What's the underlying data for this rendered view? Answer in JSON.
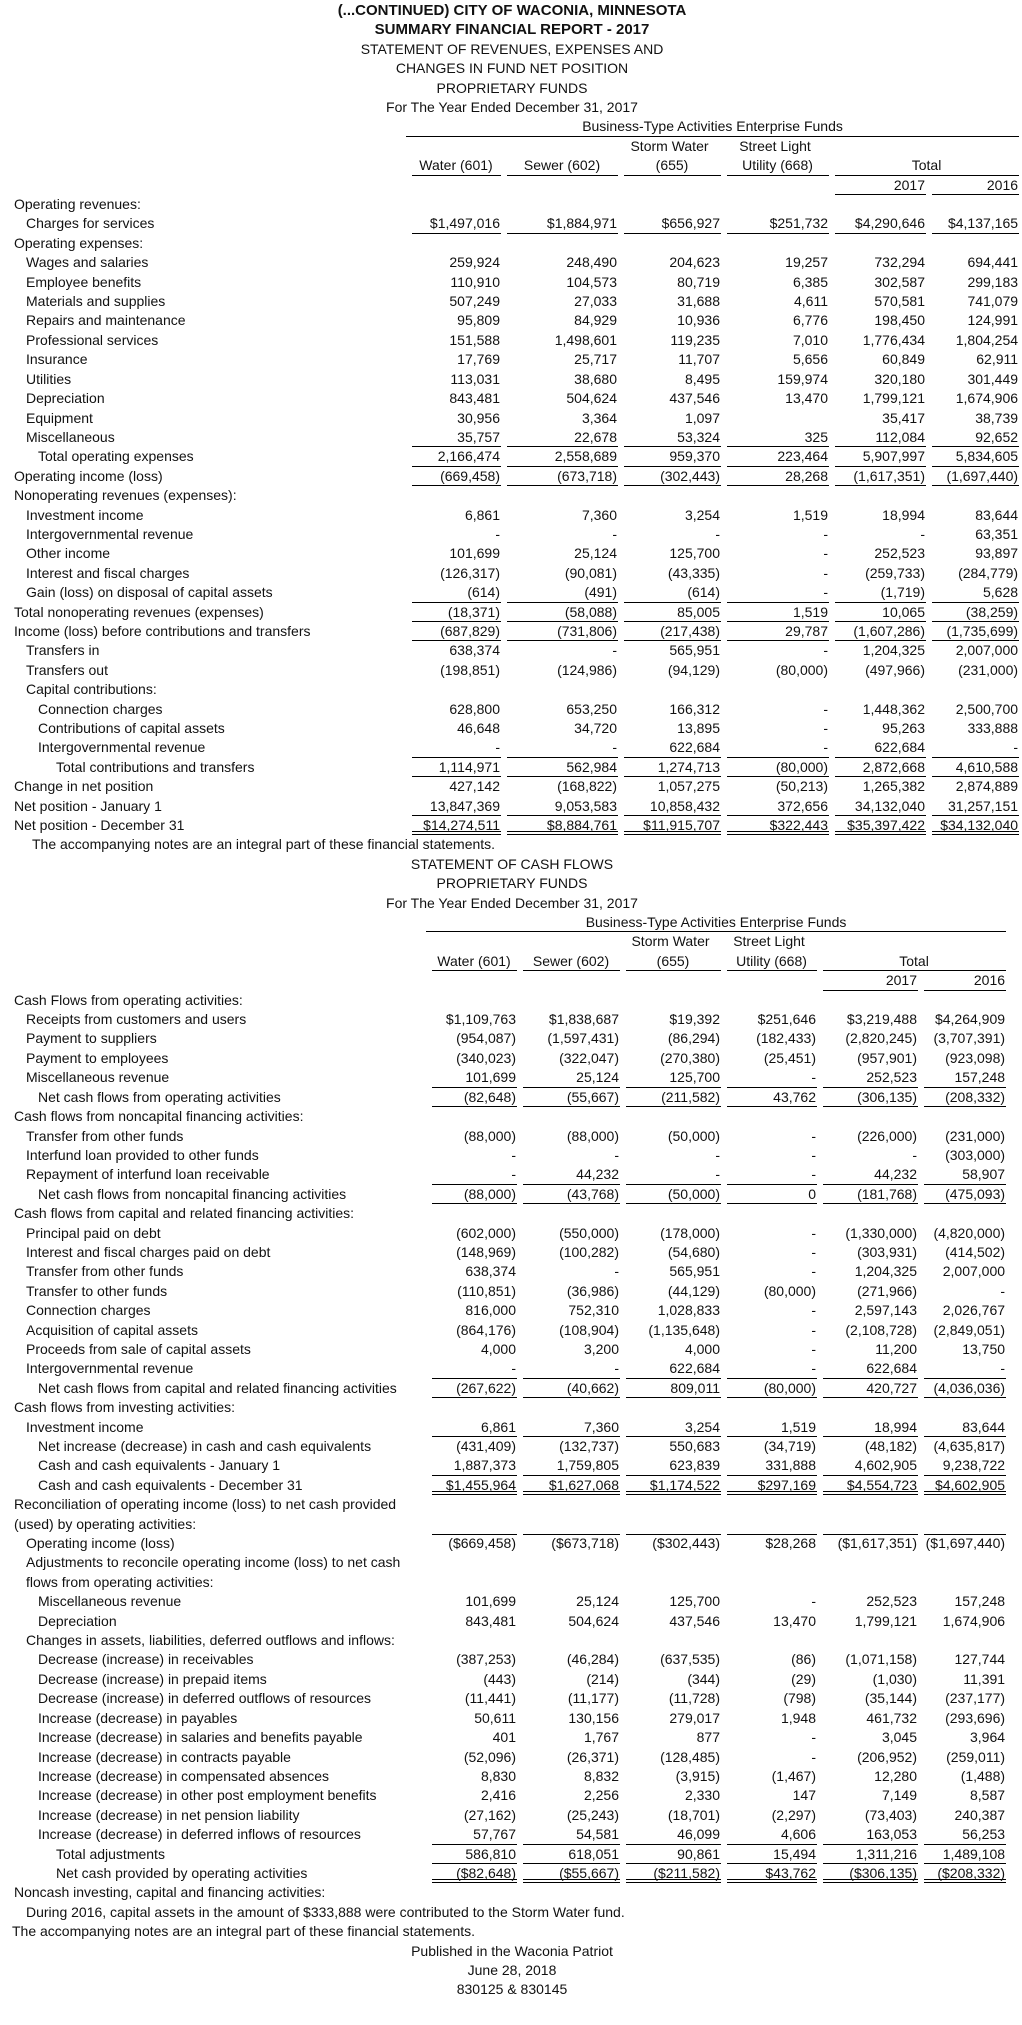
{
  "header": {
    "lines": [
      "(...CONTINUED) CITY OF WACONIA, MINNESOTA",
      "SUMMARY FINANCIAL REPORT - 2017",
      "STATEMENT OF REVENUES, EXPENSES AND",
      "CHANGES IN FUND NET POSITION",
      "PROPRIETARY FUNDS",
      "For The Year Ended  December 31, 2017"
    ]
  },
  "statement1": {
    "columns": {
      "group": "Business-Type Activities Enterprise Funds",
      "storm": "Storm Water",
      "street": "Street Light",
      "names": [
        "Water (601)",
        "Sewer (602)",
        "(655)",
        "Utility (668)"
      ],
      "total": "Total",
      "years": [
        "2017",
        "2016"
      ]
    },
    "rows": [
      [
        "Operating revenues:"
      ],
      [
        "Charges for services",
        "$1,497,016",
        "$1,884,971",
        "$656,927",
        "$251,732",
        "$4,290,646",
        "$4,137,165"
      ],
      [
        "Operating expenses:"
      ],
      [
        "Wages and salaries",
        "259,924",
        "248,490",
        "204,623",
        "19,257",
        "732,294",
        "694,441"
      ],
      [
        "Employee benefits",
        "110,910",
        "104,573",
        "80,719",
        "6,385",
        "302,587",
        "299,183"
      ],
      [
        "Materials and supplies",
        "507,249",
        "27,033",
        "31,688",
        "4,611",
        "570,581",
        "741,079"
      ],
      [
        "Repairs and maintenance",
        "95,809",
        "84,929",
        "10,936",
        "6,776",
        "198,450",
        "124,991"
      ],
      [
        "Professional services",
        "151,588",
        "1,498,601",
        "119,235",
        "7,010",
        "1,776,434",
        "1,804,254"
      ],
      [
        "Insurance",
        "17,769",
        "25,717",
        "11,707",
        "5,656",
        "60,849",
        "62,911"
      ],
      [
        "Utilities",
        "113,031",
        "38,680",
        "8,495",
        "159,974",
        "320,180",
        "301,449"
      ],
      [
        "Depreciation",
        "843,481",
        "504,624",
        "437,546",
        "13,470",
        "1,799,121",
        "1,674,906"
      ],
      [
        "Equipment",
        "30,956",
        "3,364",
        "1,097",
        null,
        "35,417",
        "38,739"
      ],
      [
        "Miscellaneous",
        "35,757",
        "22,678",
        "53,324",
        "325",
        "112,084",
        "92,652"
      ],
      [
        "Total operating expenses",
        "2,166,474",
        "2,558,689",
        "959,370",
        "223,464",
        "5,907,997",
        "5,834,605"
      ],
      [
        "Operating income (loss)",
        "(669,458)",
        "(673,718)",
        "(302,443)",
        "28,268",
        "(1,617,351)",
        "(1,697,440)"
      ],
      [
        "Nonoperating revenues (expenses):"
      ],
      [
        "Investment income",
        "6,861",
        "7,360",
        "3,254",
        "1,519",
        "18,994",
        "83,644"
      ],
      [
        "Intergovernmental revenue",
        "-",
        "-",
        "-",
        "-",
        "-",
        "63,351"
      ],
      [
        "Other income",
        "101,699",
        "25,124",
        "125,700",
        "-",
        "252,523",
        "93,897"
      ],
      [
        "Interest and fiscal charges",
        "(126,317)",
        "(90,081)",
        "(43,335)",
        "-",
        "(259,733)",
        "(284,779)"
      ],
      [
        "Gain (loss) on disposal of capital assets",
        "(614)",
        "(491)",
        "(614)",
        "-",
        "(1,719)",
        "5,628"
      ],
      [
        "Total nonoperating revenues (expenses)",
        "(18,371)",
        "(58,088)",
        "85,005",
        "1,519",
        "10,065",
        "(38,259)"
      ],
      [
        "Income (loss) before contributions and transfers",
        "(687,829)",
        "(731,806)",
        "(217,438)",
        "29,787",
        "(1,607,286)",
        "(1,735,699)"
      ],
      [
        "Transfers in",
        "638,374",
        "-",
        "565,951",
        "-",
        "1,204,325",
        "2,007,000"
      ],
      [
        "Transfers out",
        "(198,851)",
        "(124,986)",
        "(94,129)",
        "(80,000)",
        "(497,966)",
        "(231,000)"
      ],
      [
        "Capital contributions:"
      ],
      [
        "Connection charges",
        "628,800",
        "653,250",
        "166,312",
        "-",
        "1,448,362",
        "2,500,700"
      ],
      [
        "Contributions of capital assets",
        "46,648",
        "34,720",
        "13,895",
        "-",
        "95,263",
        "333,888"
      ],
      [
        "Intergovernmental revenue",
        "-",
        "-",
        "622,684",
        "-",
        "622,684",
        "-"
      ],
      [
        "Total contributions and transfers",
        "1,114,971",
        "562,984",
        "1,274,713",
        "(80,000)",
        "2,872,668",
        "4,610,588"
      ],
      [
        "Change in net position",
        "427,142",
        "(168,822)",
        "1,057,275",
        "(50,213)",
        "1,265,382",
        "2,874,889"
      ],
      [
        "Net position - January 1",
        "13,847,369",
        "9,053,583",
        "10,858,432",
        "372,656",
        "34,132,040",
        "31,257,151"
      ],
      [
        "Net position - December 31",
        "$14,274,511",
        "$8,884,761",
        "$11,915,707",
        "$322,443",
        "$35,397,422",
        "$34,132,040"
      ]
    ],
    "note": "The accompanying notes are an integral part of these financial statements."
  },
  "statement2": {
    "title_lines": [
      "STATEMENT OF CASH FLOWS",
      "PROPRIETARY FUNDS",
      "For The Year Ended  December 31, 2017"
    ],
    "columns": {
      "group": "Business-Type Activities Enterprise Funds",
      "storm": "Storm Water",
      "street": "Street Light",
      "names": [
        "Water (601)",
        "Sewer (602)",
        "(655)",
        "Utility (668)"
      ],
      "total": "Total",
      "years": [
        "2017",
        "2016"
      ]
    },
    "rows": [
      [
        "Cash Flows from operating activities:"
      ],
      [
        "Receipts from customers and users",
        "$1,109,763",
        "$1,838,687",
        "$19,392",
        "$251,646",
        "$3,219,488",
        "$4,264,909"
      ],
      [
        "Payment to suppliers",
        "(954,087)",
        "(1,597,431)",
        "(86,294)",
        "(182,433)",
        "(2,820,245)",
        "(3,707,391)"
      ],
      [
        "Payment to employees",
        "(340,023)",
        "(322,047)",
        "(270,380)",
        "(25,451)",
        "(957,901)",
        "(923,098)"
      ],
      [
        "Miscellaneous revenue",
        "101,699",
        "25,124",
        "125,700",
        "-",
        "252,523",
        "157,248"
      ],
      [
        "Net cash flows from operating activities",
        "(82,648)",
        "(55,667)",
        "(211,582)",
        "43,762",
        "(306,135)",
        "(208,332)"
      ],
      [
        "Cash flows from noncapital financing activities:"
      ],
      [
        "Transfer from other funds",
        "(88,000)",
        "(88,000)",
        "(50,000)",
        "-",
        "(226,000)",
        "(231,000)"
      ],
      [
        "Interfund loan provided to other funds",
        "-",
        "-",
        "-",
        "-",
        "-",
        "(303,000)"
      ],
      [
        "Repayment of interfund loan receivable",
        "-",
        "44,232",
        "-",
        "-",
        "44,232",
        "58,907"
      ],
      [
        "Net cash flows from noncapital financing activities",
        "(88,000)",
        "(43,768)",
        "(50,000)",
        "0",
        "(181,768)",
        "(475,093)"
      ],
      [
        "Cash flows from capital and related financing activities:"
      ],
      [
        "Principal paid on debt",
        "(602,000)",
        "(550,000)",
        "(178,000)",
        "-",
        "(1,330,000)",
        "(4,820,000)"
      ],
      [
        "Interest and fiscal charges paid on debt",
        "(148,969)",
        "(100,282)",
        "(54,680)",
        "-",
        "(303,931)",
        "(414,502)"
      ],
      [
        "Transfer from other funds",
        "638,374",
        "-",
        "565,951",
        "-",
        "1,204,325",
        "2,007,000"
      ],
      [
        "Transfer to other funds",
        "(110,851)",
        "(36,986)",
        "(44,129)",
        "(80,000)",
        "(271,966)",
        "-"
      ],
      [
        "Connection charges",
        "816,000",
        "752,310",
        "1,028,833",
        "-",
        "2,597,143",
        "2,026,767"
      ],
      [
        "Acquisition of capital assets",
        "(864,176)",
        "(108,904)",
        "(1,135,648)",
        "-",
        "(2,108,728)",
        "(2,849,051)"
      ],
      [
        "Proceeds from sale of capital assets",
        "4,000",
        "3,200",
        "4,000",
        "-",
        "11,200",
        "13,750"
      ],
      [
        "Intergovernmental revenue",
        "-",
        "-",
        "622,684",
        "-",
        "622,684",
        "-"
      ],
      [
        "Net cash flows from capital and related financing activities",
        "(267,622)",
        "(40,662)",
        "809,011",
        "(80,000)",
        "420,727",
        "(4,036,036)"
      ],
      [
        "Cash flows from investing activities:"
      ],
      [
        "Investment income",
        "6,861",
        "7,360",
        "3,254",
        "1,519",
        "18,994",
        "83,644"
      ],
      [
        "Net increase (decrease) in cash and cash equivalents",
        "(431,409)",
        "(132,737)",
        "550,683",
        "(34,719)",
        "(48,182)",
        "(4,635,817)"
      ],
      [
        "Cash and cash equivalents - January 1",
        "1,887,373",
        "1,759,805",
        "623,839",
        "331,888",
        "4,602,905",
        "9,238,722"
      ],
      [
        "Cash and cash equivalents - December 31",
        "$1,455,964",
        "$1,627,068",
        "$1,174,522",
        "$297,169",
        "$4,554,723",
        "$4,602,905"
      ],
      [
        "Reconciliation of operating income (loss) to net cash provided (used) by operating activities:"
      ],
      [
        "Operating income (loss)",
        "($669,458)",
        "($673,718)",
        "($302,443)",
        "$28,268",
        "($1,617,351)",
        "($1,697,440)"
      ],
      [
        "Adjustments to reconcile operating income (loss) to net cash flows from operating activities:"
      ],
      [
        "Miscellaneous revenue",
        "101,699",
        "25,124",
        "125,700",
        "-",
        "252,523",
        "157,248"
      ],
      [
        "Depreciation",
        "843,481",
        "504,624",
        "437,546",
        "13,470",
        "1,799,121",
        "1,674,906"
      ],
      [
        "Changes in assets, liabilities, deferred outflows and inflows:"
      ],
      [
        "Decrease (increase) in receivables",
        "(387,253)",
        "(46,284)",
        "(637,535)",
        "(86)",
        "(1,071,158)",
        "127,744"
      ],
      [
        "Decrease (increase) in prepaid items",
        "(443)",
        "(214)",
        "(344)",
        "(29)",
        "(1,030)",
        "11,391"
      ],
      [
        "Decrease (increase) in deferred outflows of resources",
        "(11,441)",
        "(11,177)",
        "(11,728)",
        "(798)",
        "(35,144)",
        "(237,177)"
      ],
      [
        "Increase (decrease) in payables",
        "50,611",
        "130,156",
        "279,017",
        "1,948",
        "461,732",
        "(293,696)"
      ],
      [
        "Increase (decrease) in salaries and benefits payable",
        "401",
        "1,767",
        "877",
        "-",
        "3,045",
        "3,964"
      ],
      [
        "Increase (decrease) in contracts payable",
        "(52,096)",
        "(26,371)",
        "(128,485)",
        "-",
        "(206,952)",
        "(259,011)"
      ],
      [
        "Increase (decrease) in compensated absences",
        "8,830",
        "8,832",
        "(3,915)",
        "(1,467)",
        "12,280",
        "(1,488)"
      ],
      [
        "Increase (decrease) in other post employment benefits",
        "2,416",
        "2,256",
        "2,330",
        "147",
        "7,149",
        "8,587"
      ],
      [
        "Increase (decrease) in net pension liability",
        "(27,162)",
        "(25,243)",
        "(18,701)",
        "(2,297)",
        "(73,403)",
        "240,387"
      ],
      [
        "Increase (decrease) in deferred inflows of resources",
        "57,767",
        "54,581",
        "46,099",
        "4,606",
        "163,053",
        "56,253"
      ],
      [
        "Total adjustments",
        "586,810",
        "618,051",
        "90,861",
        "15,494",
        "1,311,216",
        "1,489,108"
      ],
      [
        "Net cash provided by operating activities",
        "($82,648)",
        "($55,667)",
        "($211,582)",
        "$43,762",
        "($306,135)",
        "($208,332)"
      ],
      [
        "Noncash investing, capital and financing activities:"
      ],
      [
        "During 2016, capital assets in the amount of $333,888 were contributed to the Storm Water fund."
      ]
    ]
  },
  "footer": {
    "lines": [
      "The accompanying notes are an integral part of these financial statements.",
      "Published in the Waconia Patriot",
      "June 28, 2018",
      "830125 & 830145"
    ]
  }
}
